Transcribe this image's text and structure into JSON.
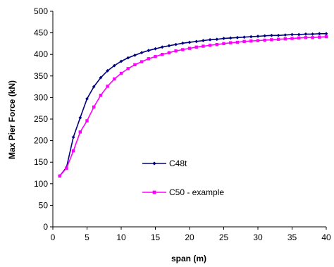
{
  "chart_data": {
    "type": "line",
    "title": "",
    "xlabel": "span (m)",
    "ylabel": "Max Pier Force (kN)",
    "xlim": [
      0,
      40
    ],
    "ylim": [
      0,
      500
    ],
    "xticks": [
      0,
      5,
      10,
      15,
      20,
      25,
      30,
      35,
      40
    ],
    "yticks": [
      0,
      50,
      100,
      150,
      200,
      250,
      300,
      350,
      400,
      450,
      500
    ],
    "grid": false,
    "legend_position": "center",
    "series": [
      {
        "name": "C48t",
        "color": "#000080",
        "marker": "diamond",
        "x": [
          1,
          2,
          3,
          4,
          5,
          6,
          7,
          8,
          9,
          10,
          11,
          12,
          13,
          14,
          15,
          16,
          17,
          18,
          19,
          20,
          21,
          22,
          23,
          24,
          25,
          26,
          27,
          28,
          29,
          30,
          31,
          32,
          33,
          34,
          35,
          36,
          37,
          38,
          39,
          40
        ],
        "values": [
          118,
          138,
          208,
          253,
          297,
          325,
          346,
          362,
          374,
          384,
          392,
          398,
          404,
          409,
          413,
          417,
          420,
          423,
          426,
          428,
          430,
          432,
          434,
          435,
          437,
          438,
          439,
          440,
          441,
          442,
          443,
          444,
          444,
          445,
          446,
          446,
          447,
          447,
          448,
          448
        ]
      },
      {
        "name": "C50 - example",
        "color": "#ff00ff",
        "marker": "square",
        "x": [
          1,
          2,
          3,
          4,
          5,
          6,
          7,
          8,
          9,
          10,
          11,
          12,
          13,
          14,
          15,
          16,
          17,
          18,
          19,
          20,
          21,
          22,
          23,
          24,
          25,
          26,
          27,
          28,
          29,
          30,
          31,
          32,
          33,
          34,
          35,
          36,
          37,
          38,
          39,
          40
        ],
        "values": [
          118,
          136,
          176,
          220,
          246,
          278,
          305,
          326,
          343,
          356,
          367,
          376,
          383,
          390,
          395,
          400,
          404,
          408,
          411,
          414,
          417,
          419,
          421,
          423,
          425,
          427,
          428,
          430,
          431,
          432,
          433,
          434,
          435,
          436,
          437,
          438,
          439,
          439,
          440,
          441
        ]
      }
    ]
  }
}
